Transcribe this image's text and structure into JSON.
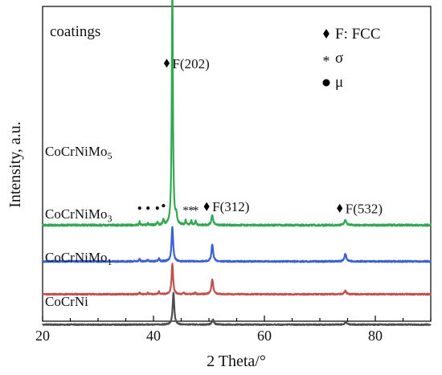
{
  "chart_data": {
    "type": "line",
    "title": "",
    "panel_label": "coatings",
    "xlabel": "2 Theta/°",
    "ylabel": "Intensity, a.u.",
    "xlim": [
      20,
      90
    ],
    "xticks": [
      20,
      40,
      60,
      80
    ],
    "yticks_shown": false,
    "grid": false,
    "legend_position": "top-right",
    "legend": [
      {
        "marker": "diamond",
        "text": "F: FCC"
      },
      {
        "marker": "asterisk",
        "text": "σ"
      },
      {
        "marker": "dot",
        "text": "μ"
      }
    ],
    "series": [
      {
        "name": "CoCrNiMo",
        "subscript": "5",
        "color": "#33a852",
        "baseline": 3.2,
        "noise": 0.05,
        "peaks": [
          [
            37.5,
            0.09,
            0.1
          ],
          [
            39.0,
            0.07,
            0.1
          ],
          [
            40.7,
            0.08,
            0.1
          ],
          [
            41.8,
            0.15,
            0.12
          ],
          [
            43.4,
            7.1,
            0.12
          ],
          [
            44.1,
            0.25,
            0.15
          ],
          [
            45.8,
            0.14,
            0.1
          ],
          [
            46.8,
            0.14,
            0.1
          ],
          [
            47.6,
            0.12,
            0.1
          ],
          [
            50.6,
            0.28,
            0.2
          ],
          [
            74.6,
            0.14,
            0.22
          ]
        ]
      },
      {
        "name": "CoCrNiMo",
        "subscript": "3",
        "color": "#3a5fd6",
        "baseline": 2.15,
        "noise": 0.04,
        "peaks": [
          [
            37.5,
            0.06,
            0.12
          ],
          [
            39.0,
            0.05,
            0.12
          ],
          [
            41.0,
            0.1,
            0.12
          ],
          [
            43.4,
            1.0,
            0.17
          ],
          [
            50.6,
            0.5,
            0.18
          ],
          [
            74.6,
            0.22,
            0.2
          ]
        ]
      },
      {
        "name": "CoCrNiMo",
        "subscript": "1",
        "color": "#c0504d",
        "baseline": 1.2,
        "noise": 0.035,
        "peaks": [
          [
            37.5,
            0.04,
            0.12
          ],
          [
            39.0,
            0.04,
            0.12
          ],
          [
            41.0,
            0.07,
            0.12
          ],
          [
            43.4,
            0.88,
            0.16
          ],
          [
            45.5,
            0.05,
            0.12
          ],
          [
            47.5,
            0.05,
            0.12
          ],
          [
            50.6,
            0.42,
            0.2
          ],
          [
            74.6,
            0.1,
            0.2
          ]
        ]
      },
      {
        "name": "CoCrNi",
        "subscript": "",
        "color": "#4d4d4d",
        "baseline": 0.32,
        "noise": 0.03,
        "peaks": [
          [
            43.6,
            0.93,
            0.17
          ],
          [
            50.7,
            0.15,
            0.2
          ],
          [
            74.7,
            0.08,
            0.2
          ]
        ]
      }
    ],
    "annotations": [
      {
        "label": "F(202)",
        "marker": "diamond",
        "x": 43.4,
        "y": 7.75
      },
      {
        "label": "F(312)",
        "marker": "diamond",
        "x": 50.6,
        "y": 3.6
      },
      {
        "label": "F(532)",
        "marker": "diamond",
        "x": 74.6,
        "y": 3.55
      }
    ],
    "phase_markers": [
      {
        "symbol": "•",
        "x": 37.5,
        "y": 3.55
      },
      {
        "symbol": "•",
        "x": 39.0,
        "y": 3.55
      },
      {
        "symbol": "•",
        "x": 40.7,
        "y": 3.55
      },
      {
        "symbol": "•",
        "x": 41.8,
        "y": 3.62
      },
      {
        "symbol": "*",
        "x": 45.8,
        "y": 3.52
      },
      {
        "symbol": "*",
        "x": 46.8,
        "y": 3.52
      },
      {
        "symbol": "*",
        "x": 47.6,
        "y": 3.52
      }
    ]
  }
}
